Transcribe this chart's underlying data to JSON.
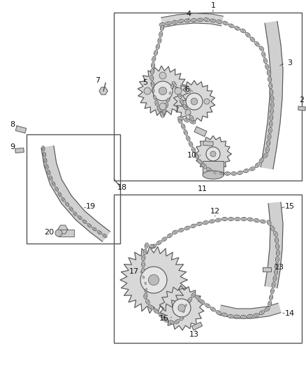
{
  "background_color": "#ffffff",
  "fig_width": 4.38,
  "fig_height": 5.33,
  "dpi": 100,
  "line_color": "#333333",
  "part_color": "#555555",
  "chain_color": "#666666",
  "guide_fill": "#cccccc",
  "guide_edge": "#444444"
}
